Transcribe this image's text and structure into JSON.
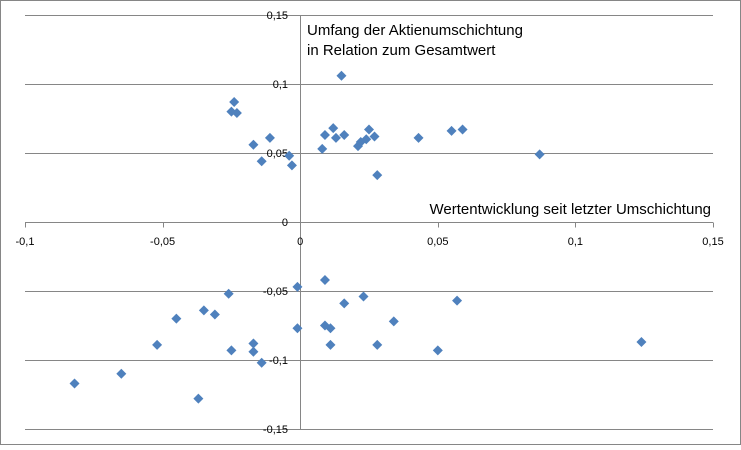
{
  "chart_data": {
    "type": "scatter",
    "title": "",
    "xlabel": "",
    "ylabel": "",
    "xlim": [
      -0.1,
      0.15
    ],
    "ylim": [
      -0.15,
      0.15
    ],
    "x_ticks": [
      "-0,1",
      "-0,05",
      "0",
      "0,05",
      "0,1",
      "0,15"
    ],
    "y_ticks": [
      "0,15",
      "0,1",
      "0,05",
      "0",
      "-0,05",
      "-0,1",
      "-0,15"
    ],
    "grid": "horizontal",
    "marker": "diamond",
    "annotations": {
      "y_axis_label_line1": "Umfang der Aktienumschichtung",
      "y_axis_label_line2": "in Relation zum Gesamtwert",
      "x_axis_label": "Wertentwicklung seit letzter Umschichtung"
    },
    "colors": {
      "marker": "#4f81bd",
      "grid": "#868686",
      "axis": "#868686",
      "border": "#868686"
    },
    "series": [
      {
        "points": [
          {
            "x": 0.015,
            "y": 0.106
          },
          {
            "x": -0.024,
            "y": 0.087
          },
          {
            "x": -0.025,
            "y": 0.08
          },
          {
            "x": -0.023,
            "y": 0.079
          },
          {
            "x": 0.012,
            "y": 0.068
          },
          {
            "x": 0.025,
            "y": 0.067
          },
          {
            "x": 0.059,
            "y": 0.067
          },
          {
            "x": 0.055,
            "y": 0.066
          },
          {
            "x": 0.009,
            "y": 0.063
          },
          {
            "x": 0.016,
            "y": 0.063
          },
          {
            "x": 0.027,
            "y": 0.062
          },
          {
            "x": -0.011,
            "y": 0.061
          },
          {
            "x": 0.013,
            "y": 0.061
          },
          {
            "x": 0.043,
            "y": 0.061
          },
          {
            "x": 0.024,
            "y": 0.06
          },
          {
            "x": 0.022,
            "y": 0.058
          },
          {
            "x": -0.017,
            "y": 0.056
          },
          {
            "x": 0.021,
            "y": 0.055
          },
          {
            "x": 0.008,
            "y": 0.053
          },
          {
            "x": 0.087,
            "y": 0.049
          },
          {
            "x": -0.004,
            "y": 0.048
          },
          {
            "x": -0.014,
            "y": 0.044
          },
          {
            "x": -0.003,
            "y": 0.041
          },
          {
            "x": 0.028,
            "y": 0.034
          },
          {
            "x": 0.009,
            "y": -0.042
          },
          {
            "x": -0.001,
            "y": -0.047
          },
          {
            "x": -0.026,
            "y": -0.052
          },
          {
            "x": 0.023,
            "y": -0.054
          },
          {
            "x": 0.057,
            "y": -0.057
          },
          {
            "x": 0.016,
            "y": -0.059
          },
          {
            "x": -0.035,
            "y": -0.064
          },
          {
            "x": -0.031,
            "y": -0.067
          },
          {
            "x": -0.045,
            "y": -0.07
          },
          {
            "x": 0.034,
            "y": -0.072
          },
          {
            "x": 0.009,
            "y": -0.075
          },
          {
            "x": 0.011,
            "y": -0.077
          },
          {
            "x": -0.001,
            "y": -0.077
          },
          {
            "x": 0.124,
            "y": -0.087
          },
          {
            "x": -0.017,
            "y": -0.088
          },
          {
            "x": -0.052,
            "y": -0.089
          },
          {
            "x": 0.011,
            "y": -0.089
          },
          {
            "x": 0.028,
            "y": -0.089
          },
          {
            "x": -0.025,
            "y": -0.093
          },
          {
            "x": -0.017,
            "y": -0.094
          },
          {
            "x": 0.05,
            "y": -0.093
          },
          {
            "x": -0.014,
            "y": -0.102
          },
          {
            "x": -0.065,
            "y": -0.11
          },
          {
            "x": -0.082,
            "y": -0.117
          },
          {
            "x": -0.037,
            "y": -0.128
          }
        ]
      }
    ]
  }
}
